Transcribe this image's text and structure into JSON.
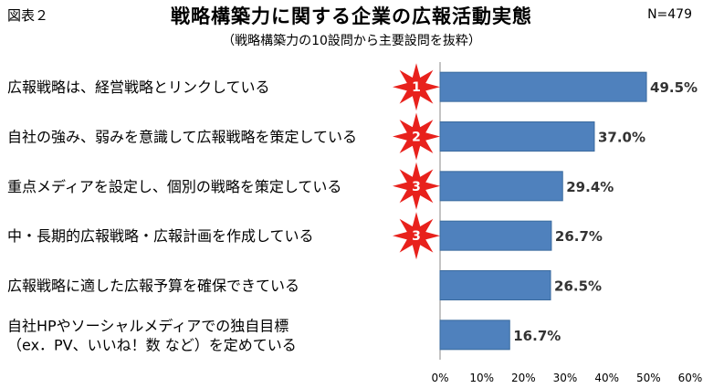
{
  "figure_label": "図表２",
  "sample_size": "N=479",
  "chart_data": {
    "type": "bar",
    "orientation": "horizontal",
    "title": "戦略構築力に関する企業の広報活動実態",
    "subtitle": "（戦略構築力の10設問から主要設問を抜粋）",
    "categories": [
      [
        "広報戦略は、経営戦略とリンクしている"
      ],
      [
        "自社の強み、弱みを意識して広報戦略を策定している"
      ],
      [
        "重点メディアを設定し、個別の戦略を策定している"
      ],
      [
        "中・長期的広報戦略・広報計画を作成している"
      ],
      [
        "広報戦略に適した広報予算を確保できている"
      ],
      [
        "自社HPやソーシャルメディアでの独自目標",
        "（ex．PV、いいね！数 など）を定めている"
      ]
    ],
    "values": [
      49.5,
      37.0,
      29.4,
      26.7,
      26.5,
      16.7
    ],
    "value_labels": [
      "49.5%",
      "37.0%",
      "29.4%",
      "26.7%",
      "26.5%",
      "16.7%"
    ],
    "ranks": [
      "1",
      "2",
      "3",
      "3",
      "",
      ""
    ],
    "xlim": [
      0,
      60
    ],
    "ticks": [
      0,
      10,
      20,
      30,
      40,
      50,
      60
    ],
    "tick_labels": [
      "0%",
      "10%",
      "20%",
      "30%",
      "40%",
      "50%",
      "60%"
    ],
    "grid": false,
    "colors": {
      "bar": "#4f81bd",
      "bar_edge": "#3a6a9e",
      "star": "#e8211c",
      "axis": "#888888"
    }
  }
}
